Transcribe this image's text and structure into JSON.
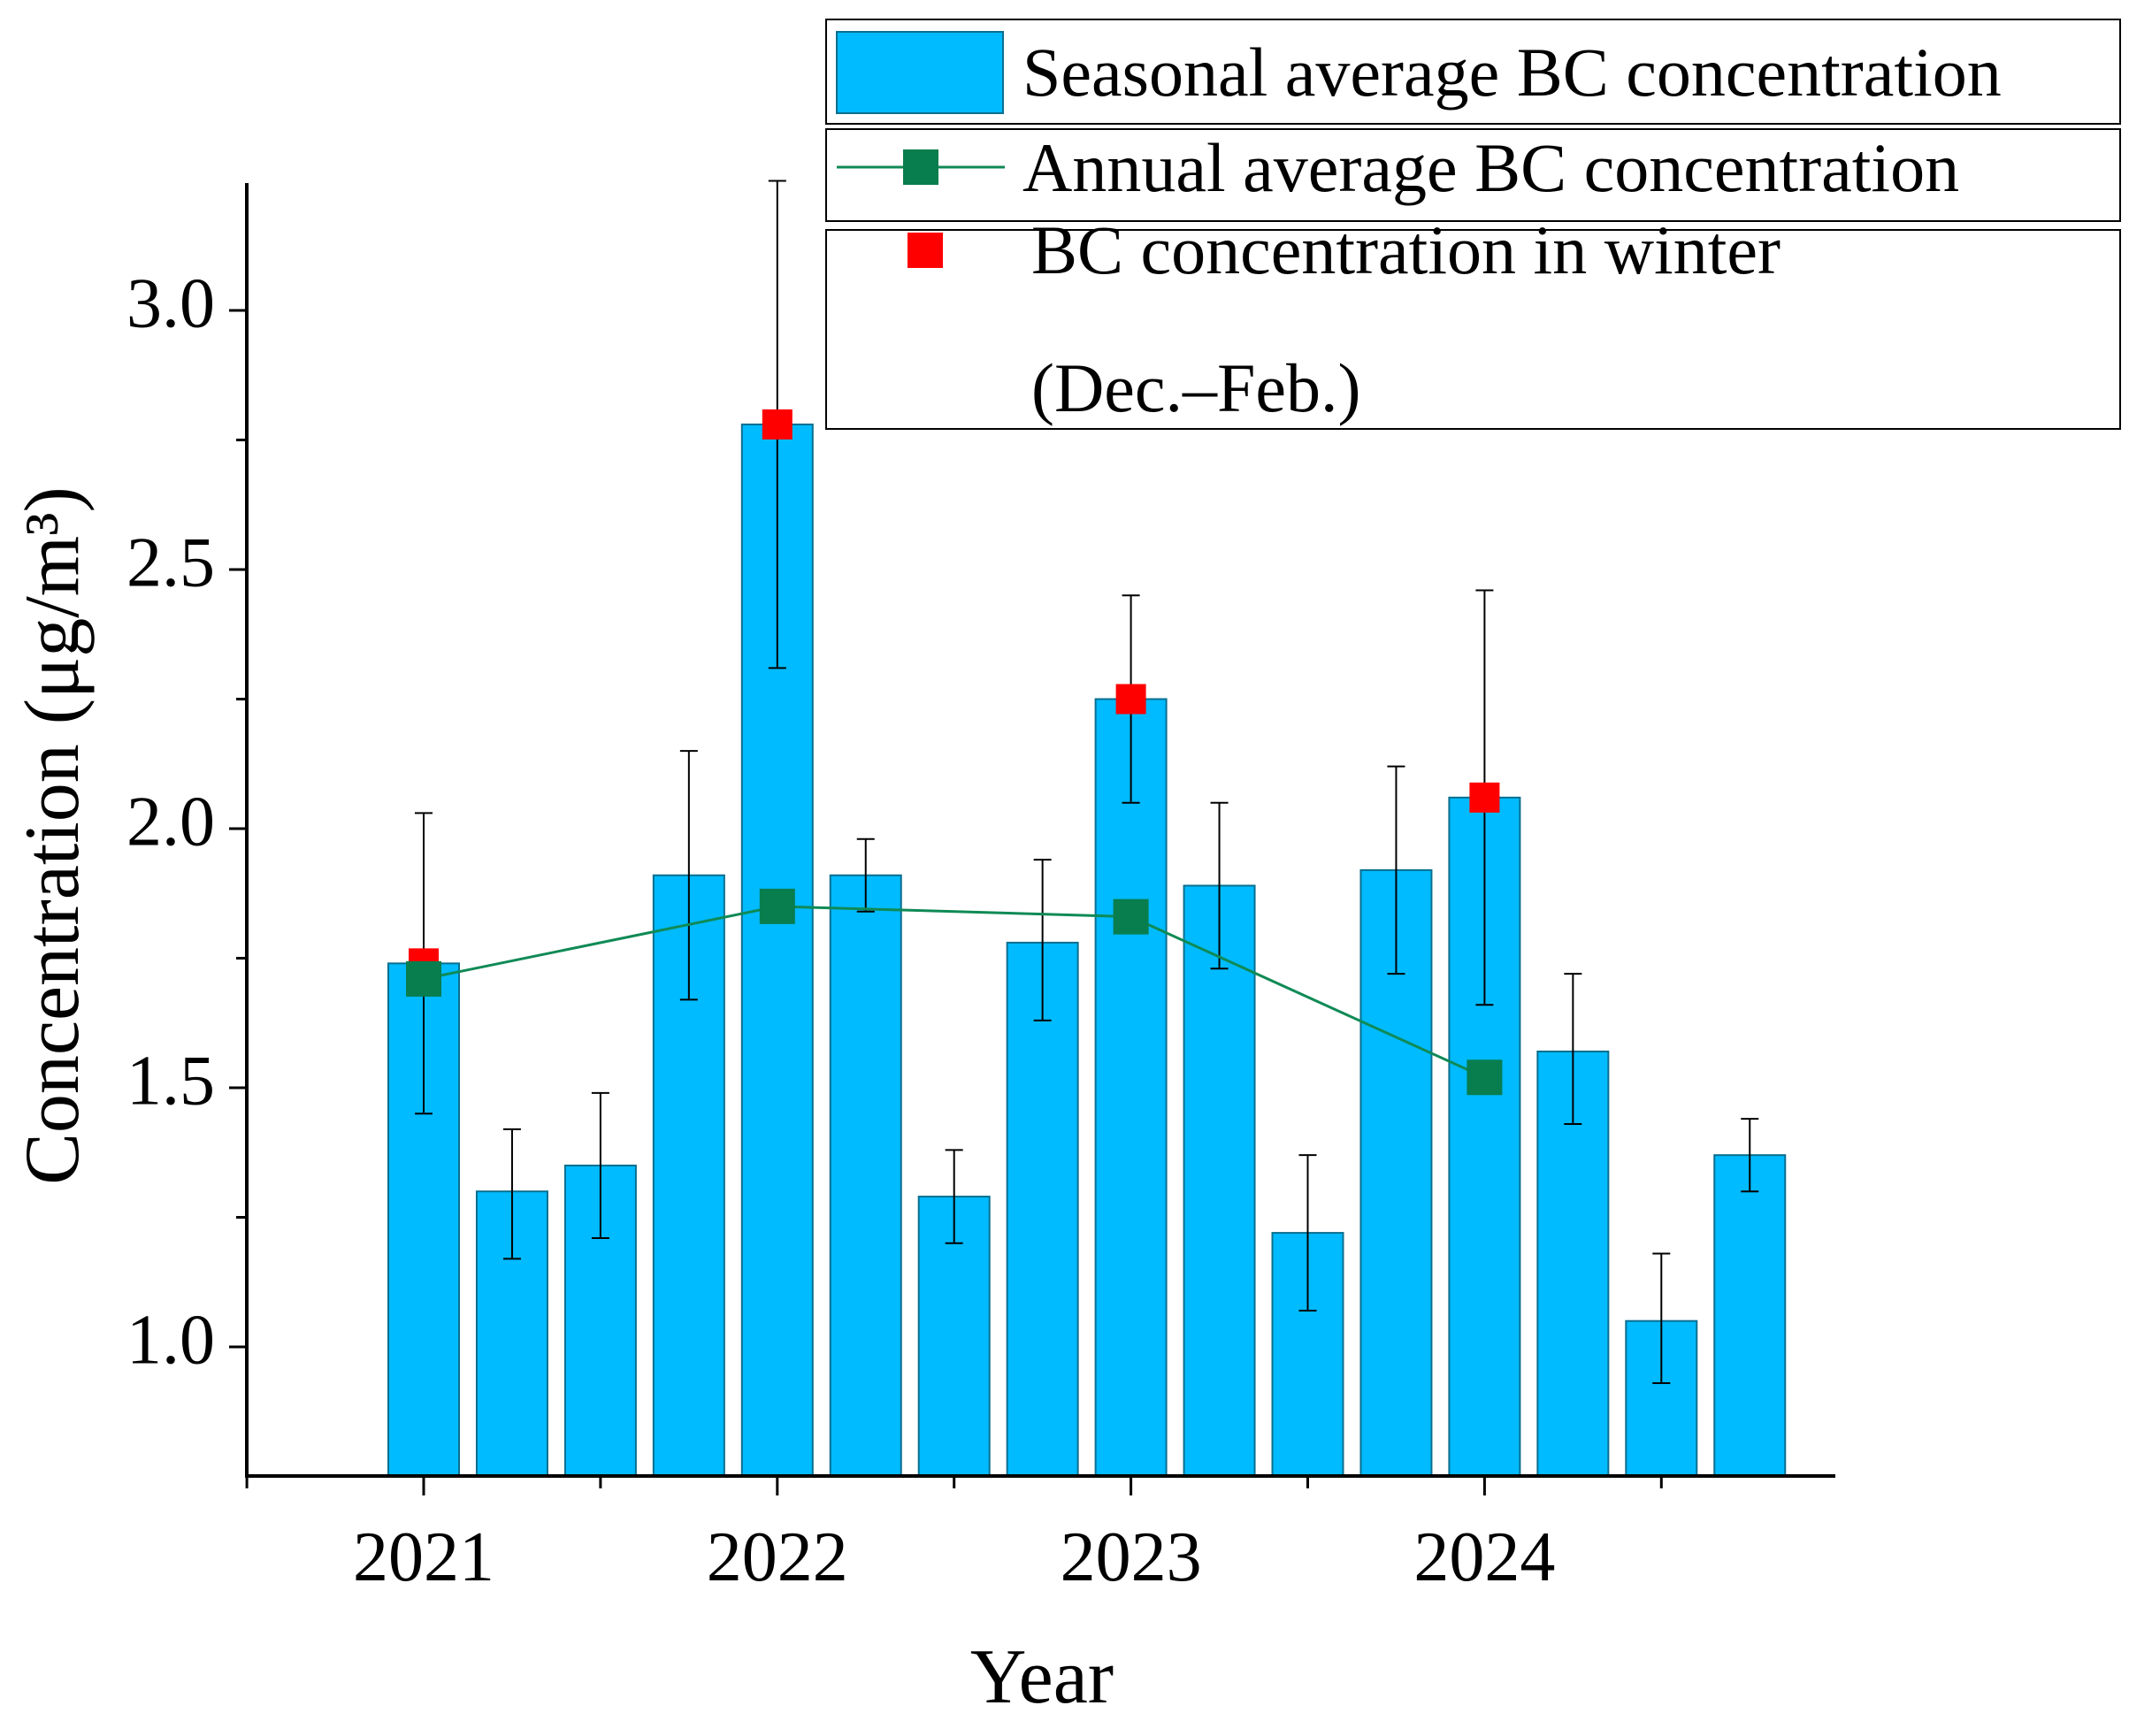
{
  "chart_data": {
    "type": "bar",
    "xlabel": "Year",
    "ylabel": "Concentration (μg/m³)",
    "ylim": [
      0.75,
      3.25
    ],
    "yticks": [
      1.0,
      1.5,
      2.0,
      2.5,
      3.0
    ],
    "ytick_labels": [
      "1.0",
      "1.5",
      "2.0",
      "2.5",
      "3.0"
    ],
    "xticks": [
      0,
      4,
      8,
      12
    ],
    "xtick_labels": [
      "2021",
      "2022",
      "2023",
      "2024"
    ],
    "legend_position": "top-right",
    "colors": {
      "bar": "#00BBFF",
      "bar_edge": "#0a6f8f",
      "line": "#0f8a55",
      "annual_marker": "#087d4e",
      "winter_marker": "#ff0000"
    },
    "series": [
      {
        "name": "Seasonal average BC concentration",
        "kind": "bar",
        "x": [
          0,
          1,
          2,
          3,
          4,
          5,
          6,
          7,
          8,
          9,
          10,
          11,
          12,
          13,
          14,
          15
        ],
        "values": [
          1.74,
          1.3,
          1.35,
          1.91,
          2.78,
          1.91,
          1.29,
          1.78,
          2.25,
          1.89,
          1.22,
          1.92,
          2.06,
          1.57,
          1.05,
          1.37
        ],
        "error_low": [
          1.45,
          1.17,
          1.21,
          1.67,
          2.31,
          1.84,
          1.2,
          1.63,
          2.05,
          1.73,
          1.07,
          1.72,
          1.66,
          1.43,
          0.93,
          1.3
        ],
        "error_high": [
          2.03,
          1.42,
          1.49,
          2.15,
          3.25,
          1.98,
          1.38,
          1.94,
          2.45,
          2.05,
          1.37,
          2.12,
          2.46,
          1.72,
          1.18,
          1.44
        ]
      },
      {
        "name": "Annual average BC concentration",
        "kind": "line",
        "x": [
          0,
          4,
          8,
          12
        ],
        "values": [
          1.71,
          1.85,
          1.83,
          1.52
        ]
      },
      {
        "name": "BC concentration in winter",
        "name_line2": "(Dec.–Feb.)",
        "kind": "scatter",
        "x": [
          0,
          4,
          8,
          12
        ],
        "values": [
          1.74,
          2.78,
          2.25,
          2.06
        ]
      }
    ]
  }
}
